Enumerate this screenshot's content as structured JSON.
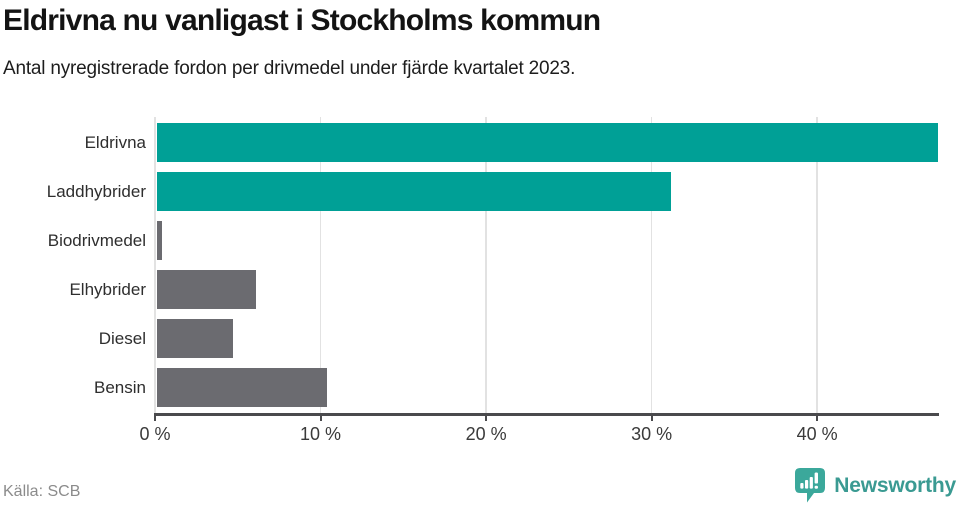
{
  "header": {
    "title": "Eldrivna nu vanligast i Stockholms kommun",
    "subtitle": "Antal nyregistrerade fordon per drivmedel under fjärde kvartalet 2023."
  },
  "chart_data": {
    "type": "bar",
    "orientation": "horizontal",
    "title": "Eldrivna nu vanligast i Stockholms kommun",
    "subtitle": "Antal nyregistrerade fordon per drivmedel under fjärde kvartalet 2023.",
    "categories": [
      "Eldrivna",
      "Laddhybrider",
      "Biodrivmedel",
      "Elhybrider",
      "Diesel",
      "Bensin"
    ],
    "values": [
      47.3,
      31.2,
      0.4,
      6.1,
      4.7,
      10.4
    ],
    "unit": "%",
    "bar_colors": [
      "#00a096",
      "#00a096",
      "#6b6b70",
      "#6b6b70",
      "#6b6b70",
      "#6b6b70"
    ],
    "xlabel": "",
    "ylabel": "",
    "xlim": [
      0,
      47.3
    ],
    "x_ticks": [
      0,
      10,
      20,
      30,
      40
    ],
    "x_tick_labels": [
      "0 %",
      "10 %",
      "20 %",
      "30 %",
      "40 %"
    ],
    "grid": true,
    "legend": false
  },
  "colors": {
    "highlight_bar": "#00a096",
    "muted_bar": "#6b6b70",
    "gridline": "#e2e2e2",
    "axis": "#4a4a4d",
    "brand_teal": "#3a9a92"
  },
  "footer": {
    "source": "Källa: SCB",
    "brand": "Newsworthy"
  }
}
